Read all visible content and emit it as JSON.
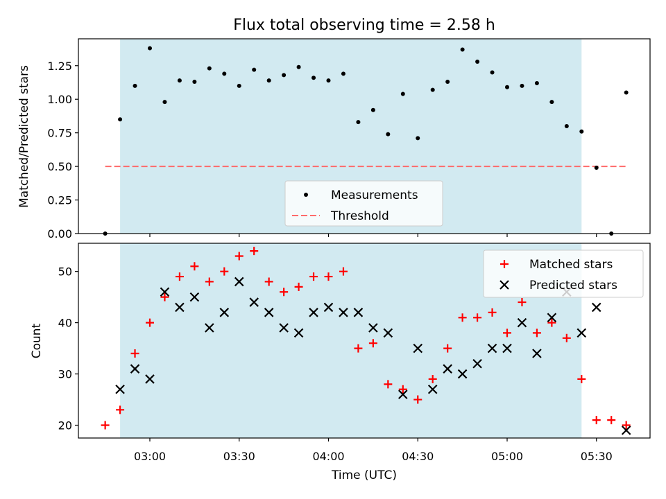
{
  "chart_data": [
    {
      "type": "scatter",
      "title": "Flux total observing time = 2.58 h",
      "xlabel": "",
      "ylabel": "Matched/Predicted stars",
      "ylim": [
        0,
        1.45
      ],
      "yticks": [
        "0.00",
        "0.25",
        "0.50",
        "0.75",
        "1.00",
        "1.25"
      ],
      "x": [
        "02:45",
        "02:50",
        "02:55",
        "03:00",
        "03:05",
        "03:10",
        "03:15",
        "03:20",
        "03:25",
        "03:30",
        "03:35",
        "03:40",
        "03:45",
        "03:50",
        "03:55",
        "04:00",
        "04:05",
        "04:10",
        "04:15",
        "04:20",
        "04:25",
        "04:30",
        "04:35",
        "04:40",
        "04:45",
        "04:50",
        "04:55",
        "05:00",
        "05:05",
        "05:10",
        "05:15",
        "05:20",
        "05:25",
        "05:30",
        "05:35",
        "05:40"
      ],
      "series": [
        {
          "name": "Measurements",
          "color": "#000000",
          "marker": "dot",
          "values": [
            0,
            0.85,
            1.1,
            1.38,
            0.98,
            1.14,
            1.13,
            1.23,
            1.19,
            1.1,
            1.22,
            1.14,
            1.18,
            1.24,
            1.16,
            1.14,
            1.19,
            0.83,
            0.92,
            0.74,
            1.04,
            0.71,
            1.07,
            1.13,
            1.37,
            1.28,
            1.2,
            1.09,
            1.1,
            1.12,
            0.98,
            0.8,
            0.76,
            0.49,
            0.0,
            1.05
          ]
        }
      ],
      "threshold": {
        "name": "Threshold",
        "value": 0.5,
        "color": "#ff6b6b",
        "x_range": [
          "02:45",
          "05:40"
        ]
      },
      "observing_window": {
        "start": "02:50",
        "end": "05:25",
        "color": "#add8e6"
      },
      "legend": "lower-center",
      "grid": false
    },
    {
      "type": "scatter",
      "title": "",
      "xlabel": "Time (UTC)",
      "ylabel": "Count",
      "ylim": [
        17.5,
        55.5
      ],
      "yticks": [
        "20",
        "30",
        "40",
        "50"
      ],
      "xticks": [
        "03:00",
        "03:30",
        "04:00",
        "04:30",
        "05:00",
        "05:30"
      ],
      "x": [
        "02:45",
        "02:50",
        "02:55",
        "03:00",
        "03:05",
        "03:10",
        "03:15",
        "03:20",
        "03:25",
        "03:30",
        "03:35",
        "03:40",
        "03:45",
        "03:50",
        "03:55",
        "04:00",
        "04:05",
        "04:10",
        "04:15",
        "04:20",
        "04:25",
        "04:30",
        "04:35",
        "04:40",
        "04:45",
        "04:50",
        "04:55",
        "05:00",
        "05:05",
        "05:10",
        "05:15",
        "05:20",
        "05:25",
        "05:30",
        "05:35",
        "05:40"
      ],
      "series": [
        {
          "name": "Matched stars",
          "color": "#ff0000",
          "marker": "plus",
          "values": [
            20,
            23,
            34,
            40,
            45,
            49,
            51,
            48,
            50,
            53,
            54,
            48,
            46,
            47,
            49,
            49,
            50,
            35,
            36,
            28,
            27,
            25,
            29,
            35,
            41,
            41,
            42,
            38,
            44,
            38,
            40,
            37,
            29,
            21,
            21,
            20
          ]
        },
        {
          "name": "Predicted stars",
          "color": "#000000",
          "marker": "x",
          "values": [
            null,
            27,
            31,
            29,
            46,
            43,
            45,
            39,
            42,
            48,
            44,
            42,
            39,
            38,
            42,
            43,
            42,
            42,
            39,
            38,
            26,
            35,
            27,
            31,
            30,
            32,
            35,
            35,
            40,
            34,
            41,
            46,
            38,
            43,
            null,
            19
          ]
        }
      ],
      "observing_window": {
        "start": "02:50",
        "end": "05:25",
        "color": "#add8e6"
      },
      "legend": "upper-right",
      "grid": false
    }
  ]
}
